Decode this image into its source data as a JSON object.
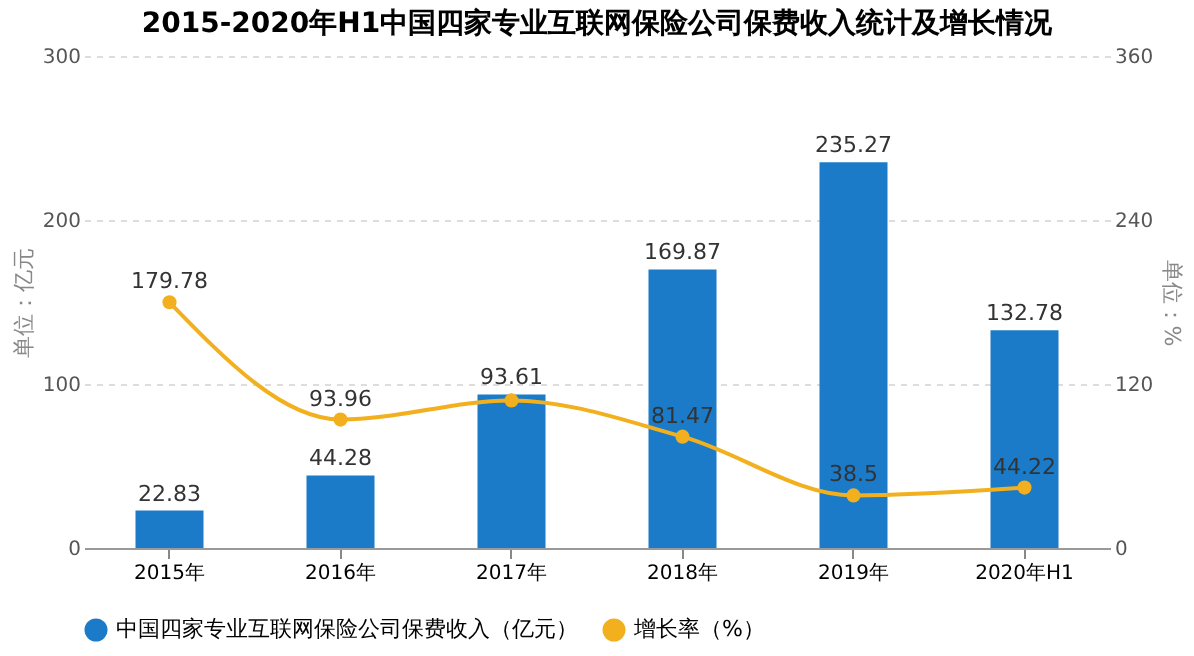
{
  "chart_data": {
    "type": "bar",
    "title": "2015-2020年H1中国四家专业互联网保险公司保费收入统计及增长情况",
    "categories": [
      "2015年",
      "2016年",
      "2017年",
      "2018年",
      "2019年",
      "2020年H1"
    ],
    "series": [
      {
        "name": "中国四家专业互联网保险公司保费收入（亿元）",
        "color": "#1b7bc9",
        "values": [
          22.83,
          44.28,
          93.61,
          169.87,
          235.27,
          132.78
        ]
      },
      {
        "name": "增长率（%）",
        "type": "line",
        "axis": "y2",
        "color": "#f2b01e",
        "marker": "circle",
        "values": [
          179.78,
          93.96,
          108,
          81.47,
          38.5,
          44.22
        ],
        "value_labels": [
          "179.78",
          "93.96",
          null,
          "81.47",
          "38.5",
          "44.22"
        ]
      }
    ],
    "data_labels": true,
    "ylabel": "单位：亿元",
    "y2label": "单位：%",
    "ylim": [
      0,
      300
    ],
    "yticks": [
      0,
      100,
      200,
      300
    ],
    "y2lim": [
      0,
      360
    ],
    "y2ticks": [
      0,
      120,
      240,
      360
    ],
    "grid": "y",
    "legend": "bottom"
  }
}
